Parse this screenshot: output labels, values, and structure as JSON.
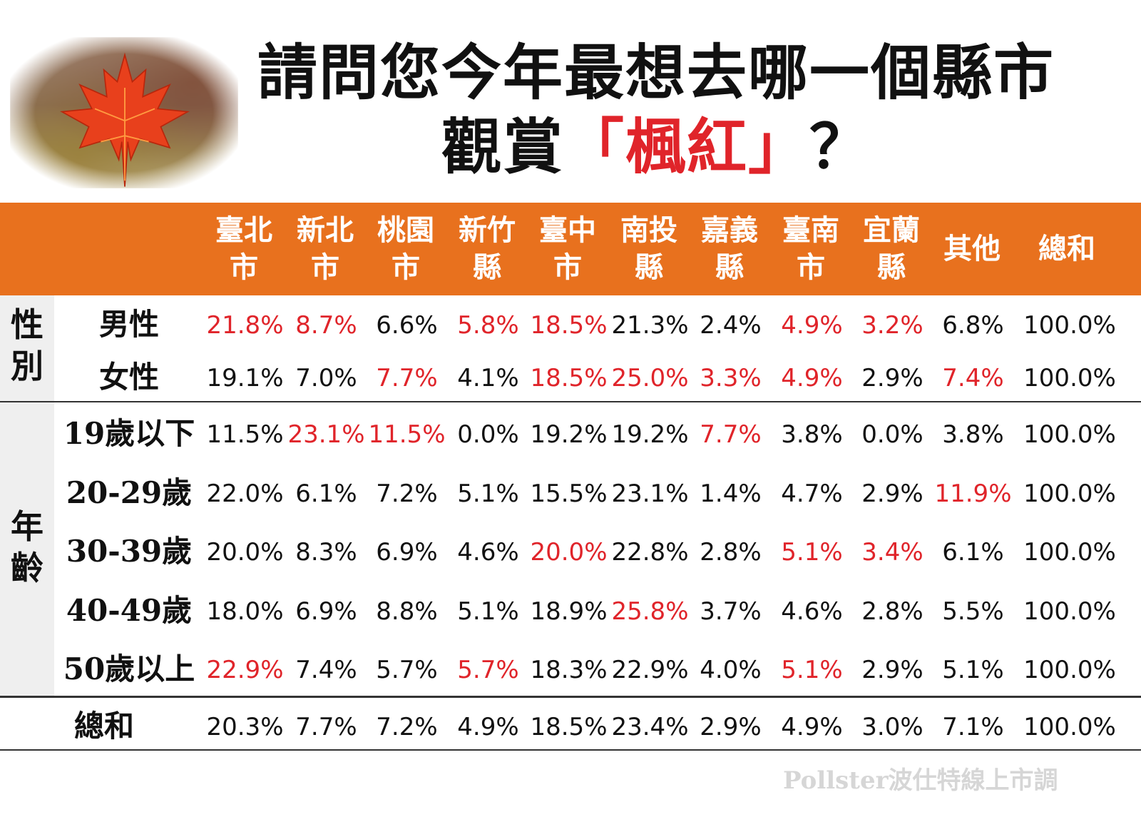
{
  "title_line1": "請問您今年最想去哪一個縣市",
  "title_line2_pre": "觀賞",
  "title_line2_highlight": "「楓紅」",
  "title_line2_post": "？",
  "credit": "Pollster波仕特線上市調",
  "colors": {
    "header": "#e8711e",
    "highlight": "#e0242a",
    "side_panel": "#efefef"
  },
  "chart_data": {
    "type": "table",
    "columns": [
      "臺北\n市",
      "新北\n市",
      "桃園\n市",
      "新竹\n縣",
      "臺中\n市",
      "南投\n縣",
      "嘉義\n縣",
      "臺南\n市",
      "宜蘭\n縣",
      "其他",
      "總和"
    ],
    "groups": [
      {
        "label": "性\n別"
      },
      {
        "label": "年\n齡"
      }
    ],
    "rows": [
      {
        "label": "男性",
        "values": [
          "21.8%",
          "8.7%",
          "6.6%",
          "5.8%",
          "18.5%",
          "21.3%",
          "2.4%",
          "4.9%",
          "3.2%",
          "6.8%",
          "100.0%"
        ],
        "highlighted": [
          true,
          true,
          false,
          true,
          true,
          false,
          false,
          true,
          true,
          false,
          false
        ]
      },
      {
        "label": "女性",
        "values": [
          "19.1%",
          "7.0%",
          "7.7%",
          "4.1%",
          "18.5%",
          "25.0%",
          "3.3%",
          "4.9%",
          "2.9%",
          "7.4%",
          "100.0%"
        ],
        "highlighted": [
          false,
          false,
          true,
          false,
          true,
          true,
          true,
          true,
          false,
          true,
          false
        ]
      },
      {
        "label": "19歲以下",
        "values": [
          "11.5%",
          "23.1%",
          "11.5%",
          "0.0%",
          "19.2%",
          "19.2%",
          "7.7%",
          "3.8%",
          "0.0%",
          "3.8%",
          "100.0%"
        ],
        "highlighted": [
          false,
          true,
          true,
          false,
          false,
          false,
          true,
          false,
          false,
          false,
          false
        ]
      },
      {
        "label": "20-29歲",
        "values": [
          "22.0%",
          "6.1%",
          "7.2%",
          "5.1%",
          "15.5%",
          "23.1%",
          "1.4%",
          "4.7%",
          "2.9%",
          "11.9%",
          "100.0%"
        ],
        "highlighted": [
          false,
          false,
          false,
          false,
          false,
          false,
          false,
          false,
          false,
          true,
          false
        ]
      },
      {
        "label": "30-39歲",
        "values": [
          "20.0%",
          "8.3%",
          "6.9%",
          "4.6%",
          "20.0%",
          "22.8%",
          "2.8%",
          "5.1%",
          "3.4%",
          "6.1%",
          "100.0%"
        ],
        "highlighted": [
          false,
          false,
          false,
          false,
          true,
          false,
          false,
          true,
          true,
          false,
          false
        ]
      },
      {
        "label": "40-49歲",
        "values": [
          "18.0%",
          "6.9%",
          "8.8%",
          "5.1%",
          "18.9%",
          "25.8%",
          "3.7%",
          "4.6%",
          "2.8%",
          "5.5%",
          "100.0%"
        ],
        "highlighted": [
          false,
          false,
          false,
          false,
          false,
          true,
          false,
          false,
          false,
          false,
          false
        ]
      },
      {
        "label": "50歲以上",
        "values": [
          "22.9%",
          "7.4%",
          "5.7%",
          "5.7%",
          "18.3%",
          "22.9%",
          "4.0%",
          "5.1%",
          "2.9%",
          "5.1%",
          "100.0%"
        ],
        "highlighted": [
          true,
          false,
          false,
          true,
          false,
          false,
          false,
          true,
          false,
          false,
          false
        ]
      },
      {
        "label": "總和",
        "values": [
          "20.3%",
          "7.7%",
          "7.2%",
          "4.9%",
          "18.5%",
          "23.4%",
          "2.9%",
          "4.9%",
          "3.0%",
          "7.1%",
          "100.0%"
        ],
        "highlighted": [
          false,
          false,
          false,
          false,
          false,
          false,
          false,
          false,
          false,
          false,
          false
        ]
      }
    ]
  }
}
